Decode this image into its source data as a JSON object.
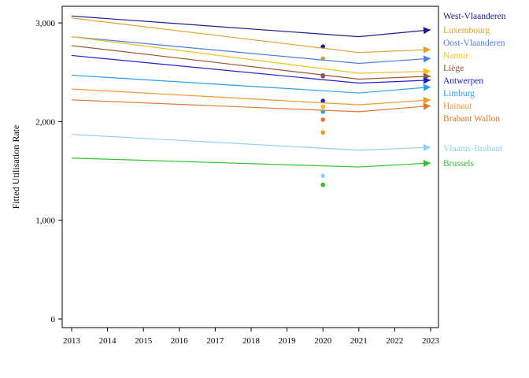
{
  "chart_data": {
    "type": "line",
    "ylabel": "Fitted Utilisation Rate",
    "xlabel": "",
    "x_ticks": [
      2013,
      2014,
      2015,
      2016,
      2017,
      2018,
      2019,
      2020,
      2021,
      2022,
      2023
    ],
    "y_ticks": [
      0,
      1000,
      2000,
      3000
    ],
    "y_tick_labels": [
      "0",
      "1,000",
      "2,000",
      "3,000"
    ],
    "xlim": [
      2013,
      2023
    ],
    "ylim": [
      0,
      3100
    ],
    "grid": false,
    "legend_placement": "right, labels at line ends",
    "series": [
      {
        "name": "West-Vlaanderen",
        "color": "#1a1a8c",
        "line": [
          [
            2013,
            3070
          ],
          [
            2021,
            2860
          ],
          [
            2023,
            2930
          ]
        ],
        "observed": [
          [
            2020,
            2760
          ]
        ]
      },
      {
        "name": "Luxembourg",
        "color": "#e0a030",
        "line": [
          [
            2013,
            3050
          ],
          [
            2021,
            2700
          ],
          [
            2023,
            2730
          ]
        ],
        "observed": [
          [
            2020,
            2640
          ]
        ]
      },
      {
        "name": "Oost-Vlaanderen",
        "color": "#4a7ee0",
        "line": [
          [
            2013,
            2860
          ],
          [
            2021,
            2590
          ],
          [
            2023,
            2640
          ]
        ],
        "observed": [
          [
            2020,
            2470
          ]
        ]
      },
      {
        "name": "Namur",
        "color": "#f0c020",
        "line": [
          [
            2013,
            2860
          ],
          [
            2021,
            2490
          ],
          [
            2023,
            2510
          ]
        ],
        "observed": [
          [
            2020,
            2150
          ]
        ]
      },
      {
        "name": "Liège",
        "color": "#a0522d",
        "line": [
          [
            2013,
            2770
          ],
          [
            2021,
            2430
          ],
          [
            2023,
            2460
          ]
        ],
        "observed": [
          [
            2020,
            2460
          ]
        ]
      },
      {
        "name": "Antwerpen",
        "color": "#2020d0",
        "line": [
          [
            2013,
            2670
          ],
          [
            2021,
            2390
          ],
          [
            2023,
            2420
          ]
        ],
        "observed": [
          [
            2020,
            2210
          ]
        ]
      },
      {
        "name": "Limburg",
        "color": "#2a9df4",
        "line": [
          [
            2013,
            2470
          ],
          [
            2021,
            2290
          ],
          [
            2023,
            2350
          ]
        ],
        "observed": [
          [
            2020,
            2100
          ]
        ]
      },
      {
        "name": "Hainaut",
        "color": "#f0962a",
        "line": [
          [
            2013,
            2330
          ],
          [
            2021,
            2170
          ],
          [
            2023,
            2220
          ]
        ],
        "observed": [
          [
            2020,
            1890
          ]
        ]
      },
      {
        "name": "Brabant Wallon",
        "color": "#e07830",
        "line": [
          [
            2013,
            2220
          ],
          [
            2021,
            2100
          ],
          [
            2023,
            2160
          ]
        ],
        "observed": [
          [
            2020,
            2020
          ]
        ]
      },
      {
        "name": "Vlaams-Brabant",
        "color": "#8fcff0",
        "line": [
          [
            2013,
            1870
          ],
          [
            2021,
            1710
          ],
          [
            2023,
            1740
          ]
        ],
        "observed": [
          [
            2020,
            1450
          ]
        ]
      },
      {
        "name": "Brussels",
        "color": "#30c030",
        "line": [
          [
            2013,
            1630
          ],
          [
            2021,
            1540
          ],
          [
            2023,
            1580
          ]
        ],
        "observed": [
          [
            2020,
            1360
          ]
        ]
      }
    ]
  }
}
